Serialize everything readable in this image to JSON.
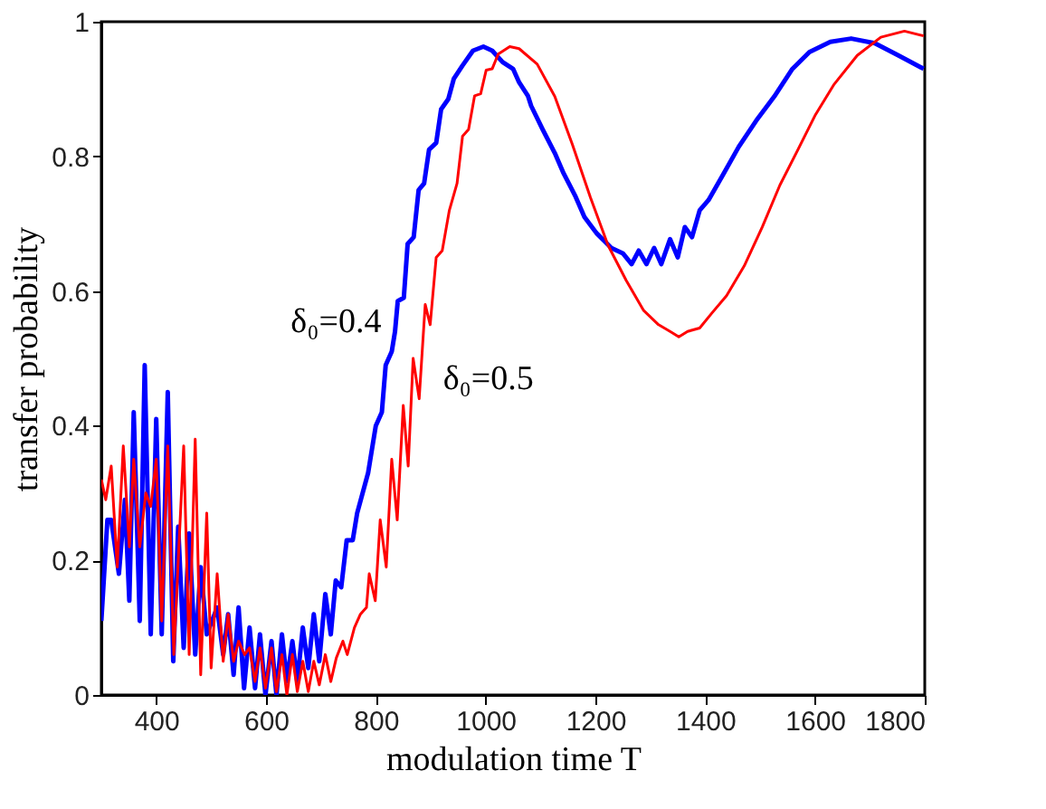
{
  "chart_data": {
    "type": "line",
    "xlabel": "modulation time T",
    "ylabel": "transfer probability",
    "xlim": [
      300,
      1800
    ],
    "xticks": [
      400,
      600,
      800,
      1000,
      1200,
      1400,
      1600,
      1800
    ],
    "ylim": [
      0,
      1
    ],
    "yticks": [
      0,
      0.2,
      0.4,
      0.6,
      0.8,
      1
    ],
    "grid": false,
    "legend": false,
    "annotations": [
      "δ₀=0.4",
      "δ₀=0.5"
    ],
    "series": [
      {
        "color": "#0000ff",
        "x": [
          300,
          311,
          318,
          332,
          343,
          351,
          359,
          370,
          379,
          390,
          400,
          410,
          421,
          431,
          440,
          450,
          460,
          471,
          481,
          492,
          511,
          522,
          531,
          541,
          550,
          560,
          570,
          580,
          589,
          599,
          610,
          619,
          629,
          638,
          648,
          657,
          667,
          677,
          687,
          697,
          708,
          718,
          727,
          737,
          747,
          758,
          766,
          786,
          800,
          811,
          818,
          829,
          835,
          840,
          851,
          858,
          869,
          878,
          888,
          897,
          910,
          919,
          932,
          942,
          958,
          977,
          996,
          1012,
          1031,
          1050,
          1061,
          1077,
          1083,
          1104,
          1126,
          1142,
          1164,
          1180,
          1202,
          1229,
          1250,
          1266,
          1279,
          1293,
          1307,
          1320,
          1336,
          1350,
          1363,
          1376,
          1390,
          1406,
          1434,
          1461,
          1493,
          1526,
          1558,
          1590,
          1628,
          1666,
          1709,
          1752,
          1798
        ],
        "values": [
          0.11,
          0.26,
          0.26,
          0.18,
          0.29,
          0.14,
          0.42,
          0.11,
          0.49,
          0.09,
          0.41,
          0.09,
          0.45,
          0.05,
          0.25,
          0.07,
          0.24,
          0.06,
          0.19,
          0.09,
          0.13,
          0.06,
          0.12,
          0.03,
          0.13,
          0.01,
          0.1,
          0.01,
          0.09,
          0.0,
          0.08,
          0.0,
          0.09,
          0.02,
          0.08,
          0.02,
          0.1,
          0.04,
          0.12,
          0.05,
          0.15,
          0.09,
          0.17,
          0.16,
          0.23,
          0.23,
          0.27,
          0.33,
          0.4,
          0.42,
          0.49,
          0.51,
          0.54,
          0.585,
          0.59,
          0.67,
          0.68,
          0.75,
          0.76,
          0.81,
          0.82,
          0.87,
          0.885,
          0.915,
          0.935,
          0.957,
          0.963,
          0.957,
          0.94,
          0.93,
          0.91,
          0.89,
          0.875,
          0.84,
          0.805,
          0.775,
          0.74,
          0.71,
          0.686,
          0.664,
          0.656,
          0.64,
          0.66,
          0.64,
          0.664,
          0.64,
          0.677,
          0.65,
          0.695,
          0.68,
          0.72,
          0.735,
          0.775,
          0.814,
          0.853,
          0.889,
          0.929,
          0.955,
          0.97,
          0.975,
          0.968,
          0.95,
          0.93
        ]
      },
      {
        "color": "#ff0000",
        "x": [
          300,
          308,
          318,
          329,
          340,
          351,
          359,
          370,
          381,
          390,
          400,
          410,
          421,
          432,
          450,
          460,
          471,
          481,
          492,
          500,
          511,
          522,
          531,
          541,
          550,
          561,
          570,
          580,
          589,
          599,
          610,
          619,
          629,
          638,
          648,
          657,
          667,
          677,
          687,
          697,
          708,
          718,
          728,
          740,
          748,
          761,
          772,
          783,
          788,
          799,
          808,
          819,
          829,
          839,
          850,
          859,
          868,
          879,
          890,
          899,
          910,
          921,
          934,
          948,
          958,
          969,
          980,
          991,
          1001,
          1012,
          1023,
          1044,
          1061,
          1094,
          1126,
          1158,
          1191,
          1223,
          1256,
          1288,
          1315,
          1336,
          1352,
          1368,
          1390,
          1412,
          1439,
          1471,
          1504,
          1536,
          1569,
          1601,
          1634,
          1677,
          1720,
          1763,
          1798
        ],
        "values": [
          0.32,
          0.29,
          0.34,
          0.19,
          0.37,
          0.22,
          0.35,
          0.22,
          0.3,
          0.28,
          0.35,
          0.11,
          0.37,
          0.06,
          0.37,
          0.06,
          0.38,
          0.03,
          0.27,
          0.04,
          0.18,
          0.05,
          0.12,
          0.05,
          0.08,
          0.06,
          0.07,
          0.02,
          0.07,
          0.01,
          0.07,
          0.005,
          0.06,
          0.0,
          0.06,
          0.005,
          0.05,
          0.005,
          0.05,
          0.015,
          0.06,
          0.02,
          0.055,
          0.08,
          0.06,
          0.1,
          0.12,
          0.13,
          0.18,
          0.14,
          0.26,
          0.19,
          0.35,
          0.26,
          0.43,
          0.34,
          0.5,
          0.44,
          0.58,
          0.55,
          0.65,
          0.66,
          0.72,
          0.76,
          0.83,
          0.84,
          0.89,
          0.893,
          0.928,
          0.93,
          0.952,
          0.963,
          0.96,
          0.937,
          0.889,
          0.818,
          0.739,
          0.668,
          0.616,
          0.571,
          0.55,
          0.54,
          0.532,
          0.54,
          0.545,
          0.567,
          0.593,
          0.637,
          0.695,
          0.757,
          0.81,
          0.862,
          0.906,
          0.95,
          0.977,
          0.986,
          0.979
        ]
      }
    ]
  }
}
